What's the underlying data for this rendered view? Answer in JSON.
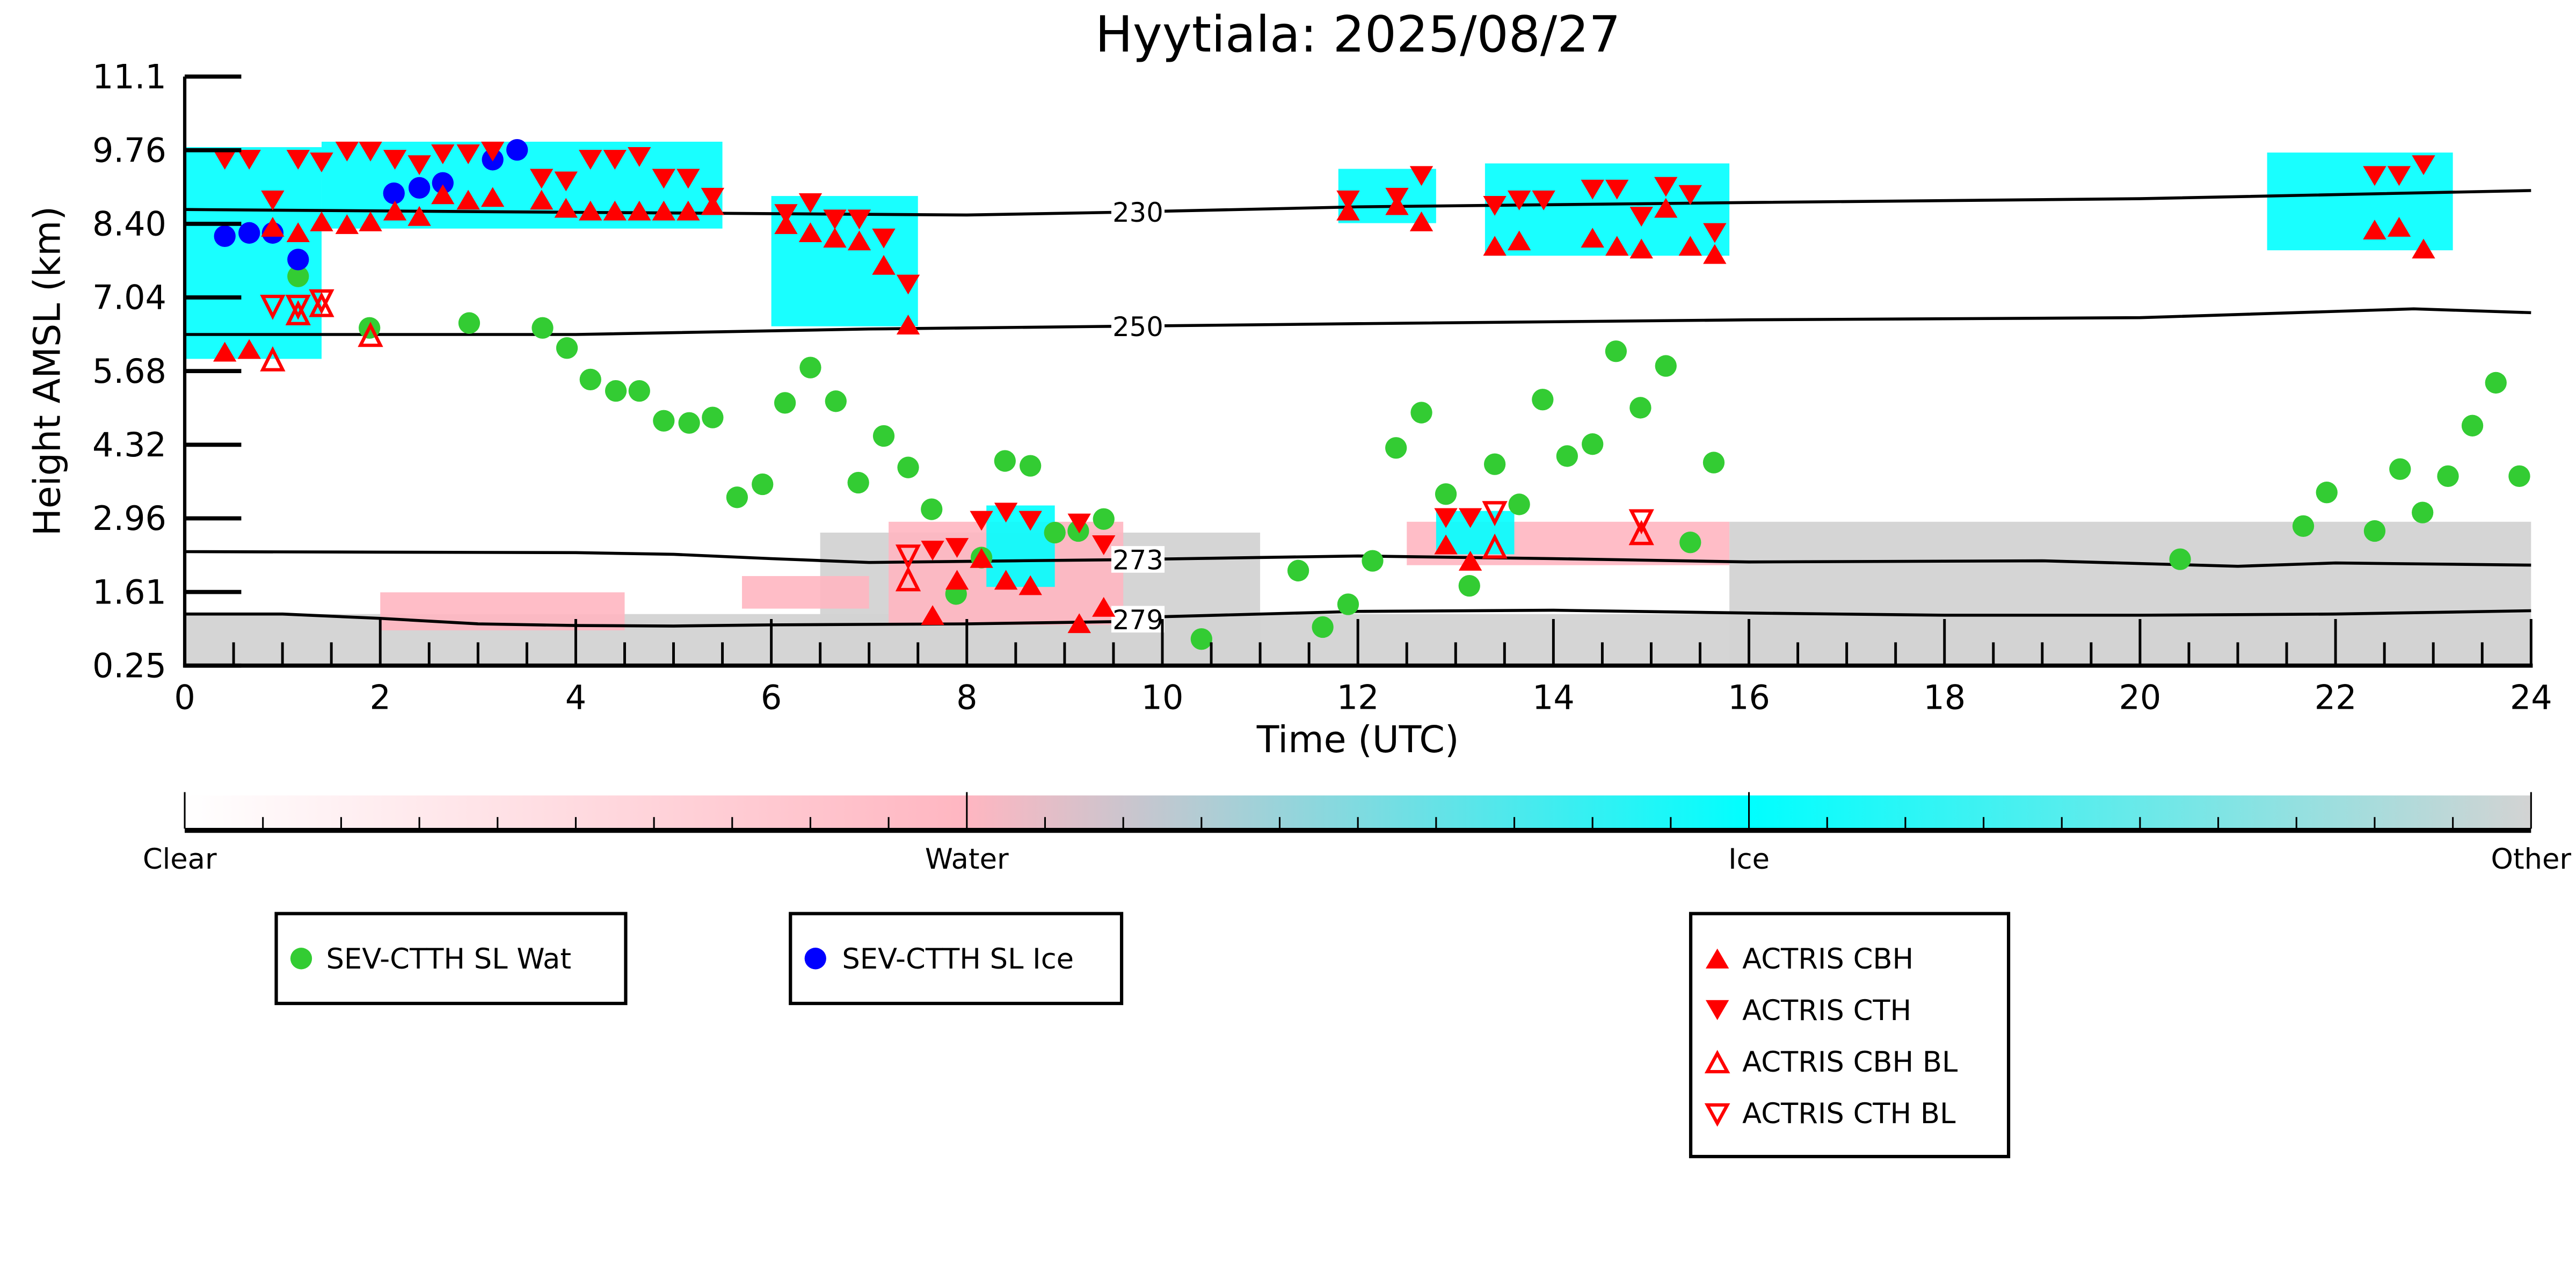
{
  "chart_data": {
    "type": "scatter",
    "title": "Hyytiala: 2025/08/27",
    "xlabel": "Time (UTC)",
    "ylabel": "Height AMSL (km)",
    "xlim": [
      0,
      24
    ],
    "ylim": [
      0.25,
      11.1
    ],
    "xticks": [
      "0",
      "2",
      "4",
      "6",
      "8",
      "10",
      "12",
      "14",
      "16",
      "18",
      "20",
      "22",
      "24"
    ],
    "yticks": [
      "0.25",
      "1.61",
      "2.96",
      "4.32",
      "5.68",
      "7.04",
      "8.40",
      "9.76",
      "11.1"
    ],
    "colorbar": {
      "labels": [
        "Clear",
        "Water",
        "Ice",
        "Other"
      ],
      "colors": {
        "clear": "#ffffff",
        "water": "#ffb6c1",
        "ice": "#00ffff",
        "other": "#d3d3d3"
      }
    },
    "isotherms": [
      {
        "label": "230",
        "points": [
          [
            0,
            8.65
          ],
          [
            4,
            8.6
          ],
          [
            8,
            8.55
          ],
          [
            9.5,
            8.6
          ],
          [
            12,
            8.7
          ],
          [
            16,
            8.78
          ],
          [
            20,
            8.85
          ],
          [
            24,
            9.0
          ]
        ]
      },
      {
        "label": "250",
        "points": [
          [
            0,
            6.35
          ],
          [
            4,
            6.35
          ],
          [
            7,
            6.45
          ],
          [
            9.5,
            6.5
          ],
          [
            12,
            6.55
          ],
          [
            16,
            6.62
          ],
          [
            20,
            6.66
          ],
          [
            22.8,
            6.82
          ],
          [
            24,
            6.75
          ]
        ]
      },
      {
        "label": "273",
        "points": [
          [
            0,
            2.35
          ],
          [
            2,
            2.34
          ],
          [
            4,
            2.33
          ],
          [
            5,
            2.3
          ],
          [
            6,
            2.22
          ],
          [
            7,
            2.15
          ],
          [
            8.5,
            2.18
          ],
          [
            9.5,
            2.2
          ],
          [
            12,
            2.27
          ],
          [
            14,
            2.22
          ],
          [
            16,
            2.16
          ],
          [
            19,
            2.18
          ],
          [
            21,
            2.08
          ],
          [
            22,
            2.14
          ],
          [
            24,
            2.1
          ]
        ]
      },
      {
        "label": "279",
        "points": [
          [
            0,
            1.2
          ],
          [
            1,
            1.2
          ],
          [
            2,
            1.12
          ],
          [
            3,
            1.02
          ],
          [
            4,
            0.99
          ],
          [
            5,
            0.98
          ],
          [
            6,
            1.0
          ],
          [
            8,
            1.02
          ],
          [
            9.5,
            1.06
          ],
          [
            10,
            1.15
          ],
          [
            12,
            1.25
          ],
          [
            14,
            1.27
          ],
          [
            16,
            1.22
          ],
          [
            18,
            1.18
          ],
          [
            20,
            1.18
          ],
          [
            22,
            1.2
          ],
          [
            24,
            1.26
          ]
        ]
      }
    ],
    "series": [
      {
        "name": "SEV-CTTH SL Wat",
        "marker": "circle",
        "color": "#33cc33",
        "points": [
          [
            1.16,
            7.42
          ],
          [
            1.89,
            6.47
          ],
          [
            2.91,
            6.56
          ],
          [
            3.66,
            6.47
          ],
          [
            3.91,
            6.1
          ],
          [
            4.15,
            5.52
          ],
          [
            4.41,
            5.31
          ],
          [
            4.65,
            5.31
          ],
          [
            4.9,
            4.76
          ],
          [
            5.16,
            4.72
          ],
          [
            5.4,
            4.82
          ],
          [
            5.65,
            3.35
          ],
          [
            5.91,
            3.59
          ],
          [
            6.14,
            5.09
          ],
          [
            6.4,
            5.74
          ],
          [
            6.66,
            5.12
          ],
          [
            6.89,
            3.62
          ],
          [
            7.15,
            4.48
          ],
          [
            7.4,
            3.9
          ],
          [
            7.64,
            3.13
          ],
          [
            7.89,
            1.57
          ],
          [
            8.15,
            2.24
          ],
          [
            8.39,
            4.02
          ],
          [
            8.65,
            3.93
          ],
          [
            8.9,
            2.7
          ],
          [
            9.14,
            2.73
          ],
          [
            9.4,
            2.95
          ],
          [
            10.4,
            0.74
          ],
          [
            11.39,
            2.0
          ],
          [
            11.64,
            0.96
          ],
          [
            11.9,
            1.38
          ],
          [
            12.15,
            2.18
          ],
          [
            12.39,
            4.26
          ],
          [
            12.65,
            4.91
          ],
          [
            12.9,
            3.41
          ],
          [
            13.14,
            1.72
          ],
          [
            13.4,
            3.96
          ],
          [
            13.65,
            3.22
          ],
          [
            13.89,
            5.15
          ],
          [
            14.14,
            4.11
          ],
          [
            14.4,
            4.33
          ],
          [
            14.64,
            6.04
          ],
          [
            14.89,
            5.0
          ],
          [
            15.15,
            5.77
          ],
          [
            15.4,
            2.52
          ],
          [
            15.64,
            3.99
          ],
          [
            20.41,
            2.21
          ],
          [
            21.67,
            2.82
          ],
          [
            21.91,
            3.44
          ],
          [
            22.4,
            2.73
          ],
          [
            22.66,
            3.87
          ],
          [
            22.89,
            3.07
          ],
          [
            23.15,
            3.74
          ],
          [
            23.4,
            4.67
          ],
          [
            23.64,
            5.46
          ],
          [
            23.88,
            3.74
          ]
        ]
      },
      {
        "name": "SEV-CTTH SL Ice",
        "marker": "circle",
        "color": "#0000ff",
        "points": [
          [
            0.41,
            8.16
          ],
          [
            0.66,
            8.22
          ],
          [
            0.9,
            8.22
          ],
          [
            1.16,
            7.73
          ],
          [
            2.14,
            8.95
          ],
          [
            2.4,
            9.05
          ],
          [
            2.64,
            9.14
          ],
          [
            3.15,
            9.57
          ],
          [
            3.4,
            9.75
          ]
        ]
      },
      {
        "name": "ACTRIS CBH",
        "marker": "triangle-up",
        "color": "#ff0000",
        "points": [
          [
            0.41,
            6.0
          ],
          [
            0.66,
            6.05
          ],
          [
            0.9,
            8.3
          ],
          [
            1.16,
            8.2
          ],
          [
            1.4,
            8.4
          ],
          [
            1.66,
            8.35
          ],
          [
            1.9,
            8.4
          ],
          [
            2.15,
            8.6
          ],
          [
            2.4,
            8.5
          ],
          [
            2.64,
            8.9
          ],
          [
            2.9,
            8.8
          ],
          [
            3.15,
            8.85
          ],
          [
            3.65,
            8.8
          ],
          [
            3.9,
            8.65
          ],
          [
            4.15,
            8.6
          ],
          [
            4.4,
            8.6
          ],
          [
            4.65,
            8.6
          ],
          [
            4.9,
            8.6
          ],
          [
            5.15,
            8.6
          ],
          [
            5.4,
            8.7
          ],
          [
            6.15,
            8.35
          ],
          [
            6.4,
            8.2
          ],
          [
            6.65,
            8.1
          ],
          [
            6.9,
            8.05
          ],
          [
            7.15,
            7.6
          ],
          [
            7.4,
            6.5
          ],
          [
            7.65,
            1.15
          ],
          [
            7.9,
            1.8
          ],
          [
            8.15,
            2.2
          ],
          [
            8.4,
            1.8
          ],
          [
            8.65,
            1.7
          ],
          [
            9.15,
            1.0
          ],
          [
            9.4,
            1.3
          ],
          [
            11.9,
            8.6
          ],
          [
            12.4,
            8.7
          ],
          [
            12.65,
            8.4
          ],
          [
            12.9,
            2.45
          ],
          [
            13.15,
            2.15
          ],
          [
            13.4,
            7.95
          ],
          [
            13.65,
            8.05
          ],
          [
            14.4,
            8.1
          ],
          [
            14.65,
            7.95
          ],
          [
            14.9,
            7.9
          ],
          [
            15.15,
            8.65
          ],
          [
            15.4,
            7.95
          ],
          [
            15.65,
            7.8
          ],
          [
            22.4,
            8.25
          ],
          [
            22.65,
            8.3
          ],
          [
            22.9,
            7.9
          ]
        ]
      },
      {
        "name": "ACTRIS CTH",
        "marker": "triangle-down",
        "color": "#ff0000",
        "points": [
          [
            0.41,
            9.6
          ],
          [
            0.66,
            9.6
          ],
          [
            0.9,
            8.85
          ],
          [
            1.16,
            9.6
          ],
          [
            1.4,
            9.55
          ],
          [
            1.66,
            9.75
          ],
          [
            1.9,
            9.75
          ],
          [
            2.15,
            9.6
          ],
          [
            2.4,
            9.5
          ],
          [
            2.64,
            9.7
          ],
          [
            2.9,
            9.7
          ],
          [
            3.15,
            9.75
          ],
          [
            3.65,
            9.25
          ],
          [
            3.9,
            9.2
          ],
          [
            4.15,
            9.6
          ],
          [
            4.4,
            9.6
          ],
          [
            4.65,
            9.65
          ],
          [
            4.9,
            9.25
          ],
          [
            5.15,
            9.25
          ],
          [
            5.4,
            8.9
          ],
          [
            6.15,
            8.6
          ],
          [
            6.4,
            8.8
          ],
          [
            6.65,
            8.5
          ],
          [
            6.9,
            8.5
          ],
          [
            7.15,
            8.15
          ],
          [
            7.4,
            7.3
          ],
          [
            7.65,
            2.4
          ],
          [
            7.9,
            2.45
          ],
          [
            8.15,
            2.95
          ],
          [
            8.4,
            3.1
          ],
          [
            8.65,
            2.95
          ],
          [
            9.15,
            2.9
          ],
          [
            9.4,
            2.5
          ],
          [
            11.9,
            8.85
          ],
          [
            12.4,
            8.9
          ],
          [
            12.65,
            9.3
          ],
          [
            12.9,
            3.0
          ],
          [
            13.15,
            3.0
          ],
          [
            13.4,
            8.75
          ],
          [
            13.65,
            8.85
          ],
          [
            13.9,
            8.85
          ],
          [
            14.4,
            9.05
          ],
          [
            14.65,
            9.05
          ],
          [
            14.9,
            8.55
          ],
          [
            15.15,
            9.1
          ],
          [
            15.4,
            8.95
          ],
          [
            15.65,
            8.25
          ],
          [
            22.4,
            9.3
          ],
          [
            22.65,
            9.3
          ],
          [
            22.9,
            9.5
          ]
        ]
      },
      {
        "name": "ACTRIS CBH BL",
        "marker": "triangle-up-open",
        "color": "#ff0000",
        "points": [
          [
            0.9,
            5.85
          ],
          [
            1.16,
            6.7
          ],
          [
            1.4,
            6.85
          ],
          [
            1.9,
            6.3
          ],
          [
            7.4,
            1.8
          ],
          [
            13.4,
            2.4
          ],
          [
            14.9,
            2.65
          ]
        ]
      },
      {
        "name": "ACTRIS CTH BL",
        "marker": "triangle-down-open",
        "color": "#ff0000",
        "points": [
          [
            0.9,
            6.9
          ],
          [
            1.16,
            6.9
          ],
          [
            1.4,
            7.0
          ],
          [
            7.4,
            2.3
          ],
          [
            13.4,
            3.1
          ],
          [
            14.9,
            2.95
          ]
        ]
      }
    ],
    "legends": [
      {
        "position": "below-left",
        "entries": [
          "SEV-CTTH SL Wat"
        ]
      },
      {
        "position": "below-center-left",
        "entries": [
          "SEV-CTTH SL Ice"
        ]
      },
      {
        "position": "below-center-right",
        "entries": [
          "ACTRIS CBH",
          "ACTRIS CTH",
          "ACTRIS CBH BL",
          "ACTRIS CTH BL"
        ]
      }
    ],
    "background_regions": [
      {
        "phase": "ice",
        "t": [
          0.0,
          1.4
        ],
        "h": [
          5.9,
          9.8
        ]
      },
      {
        "phase": "ice",
        "t": [
          1.4,
          5.5
        ],
        "h": [
          8.3,
          9.9
        ]
      },
      {
        "phase": "ice",
        "t": [
          6.0,
          7.5
        ],
        "h": [
          6.5,
          8.9
        ]
      },
      {
        "phase": "ice",
        "t": [
          8.2,
          8.9
        ],
        "h": [
          1.7,
          3.2
        ]
      },
      {
        "phase": "ice",
        "t": [
          11.8,
          12.8
        ],
        "h": [
          8.4,
          9.4
        ]
      },
      {
        "phase": "ice",
        "t": [
          12.8,
          13.6
        ],
        "h": [
          2.3,
          3.1
        ]
      },
      {
        "phase": "ice",
        "t": [
          13.3,
          15.8
        ],
        "h": [
          7.8,
          9.5
        ]
      },
      {
        "phase": "ice",
        "t": [
          21.3,
          23.2
        ],
        "h": [
          7.9,
          9.7
        ]
      },
      {
        "phase": "water",
        "t": [
          7.2,
          9.6
        ],
        "h": [
          1.0,
          2.9
        ]
      },
      {
        "phase": "water",
        "t": [
          12.5,
          15.8
        ],
        "h": [
          2.1,
          2.9
        ]
      },
      {
        "phase": "water",
        "t": [
          2.0,
          4.5
        ],
        "h": [
          0.9,
          1.6
        ]
      },
      {
        "phase": "water",
        "t": [
          5.7,
          7.0
        ],
        "h": [
          1.3,
          1.9
        ]
      },
      {
        "phase": "other",
        "t": [
          0,
          24
        ],
        "h": [
          0.25,
          1.2
        ]
      },
      {
        "phase": "other",
        "t": [
          6.5,
          11.0
        ],
        "h": [
          0.25,
          2.7
        ]
      },
      {
        "phase": "other",
        "t": [
          15.8,
          24
        ],
        "h": [
          0.25,
          2.9
        ]
      }
    ]
  }
}
